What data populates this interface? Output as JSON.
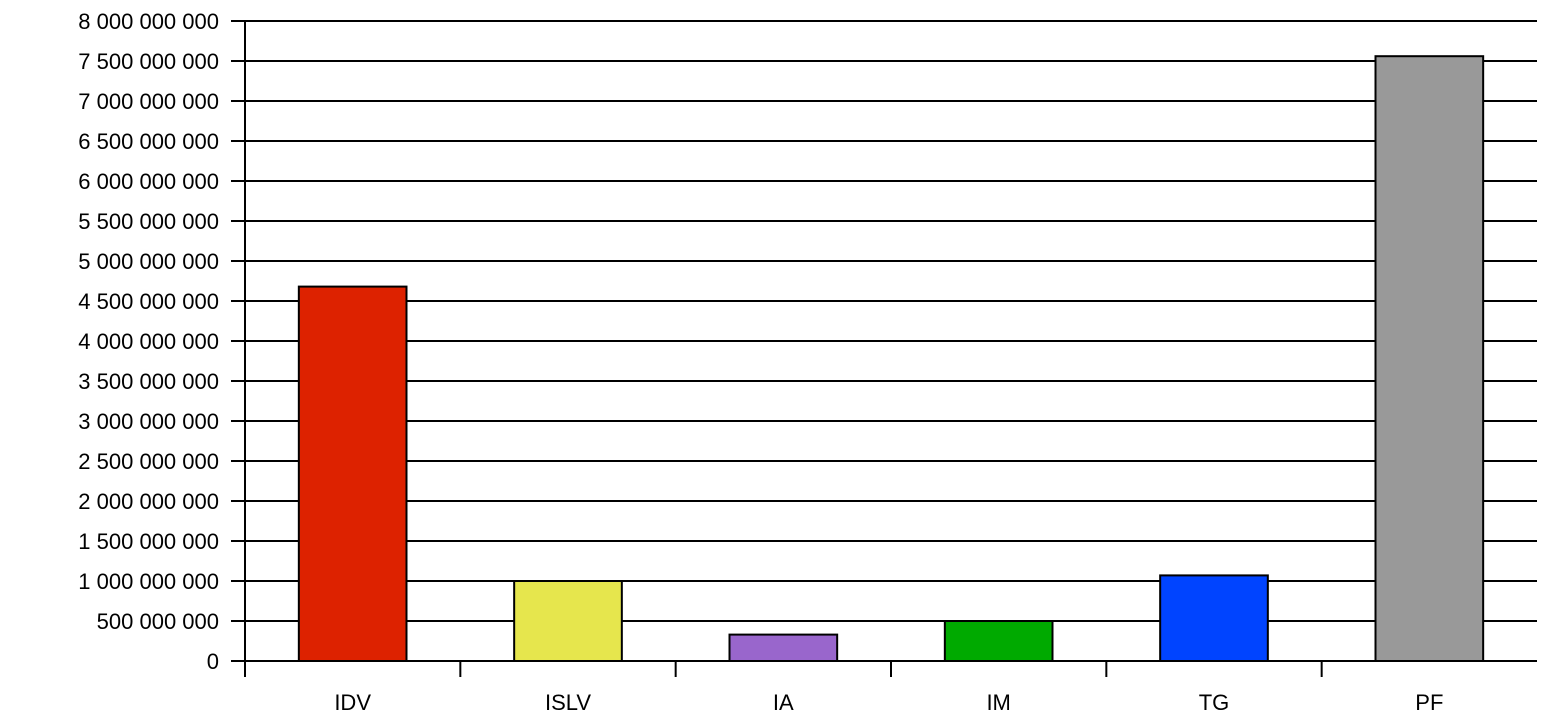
{
  "chart_data": {
    "type": "bar",
    "title": "",
    "xlabel": "",
    "ylabel": "",
    "categories": [
      "IDV",
      "ISLV",
      "IA",
      "IM",
      "TG",
      "PF"
    ],
    "values": [
      4680000000,
      1000000000,
      330000000,
      500000000,
      1070000000,
      7560000000
    ],
    "colors": [
      "#dd2200",
      "#e6e64d",
      "#9966cc",
      "#00aa00",
      "#0044ff",
      "#999999"
    ],
    "ylim": [
      0,
      8000000000
    ],
    "ytick_step": 500000000,
    "ytick_labels": [
      "0",
      "500 000 000",
      "1 000 000 000",
      "1 500 000 000",
      "2 000 000 000",
      "2 500 000 000",
      "3 000 000 000",
      "3 500 000 000",
      "4 000 000 000",
      "4 500 000 000",
      "5 000 000 000",
      "5 500 000 000",
      "6 000 000 000",
      "6 500 000 000",
      "7 000 000 000",
      "7 500 000 000",
      "8 000 000 000"
    ],
    "grid": true,
    "legend": "none"
  }
}
